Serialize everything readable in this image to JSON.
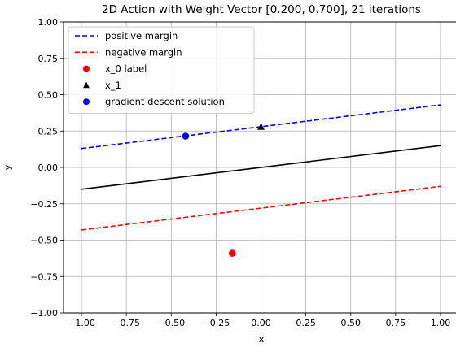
{
  "chart_data": {
    "type": "line",
    "title": "2D Action with Weight Vector [0.200, 0.700], 21 iterations",
    "xlabel": "x",
    "ylabel": "y",
    "xlim": [
      -1.1,
      1.1
    ],
    "ylim": [
      -1.0,
      1.0
    ],
    "grid": true,
    "legend_position": "top-left",
    "x_ticks": [
      -1.0,
      -0.75,
      -0.5,
      -0.25,
      0.0,
      0.25,
      0.5,
      0.75,
      1.0
    ],
    "x_tick_labels": [
      "−1.00",
      "−0.75",
      "−0.50",
      "−0.25",
      "0.00",
      "0.25",
      "0.50",
      "0.75",
      "1.00"
    ],
    "y_ticks": [
      -1.0,
      -0.75,
      -0.5,
      -0.25,
      0.0,
      0.25,
      0.5,
      0.75,
      1.0
    ],
    "y_tick_labels": [
      "−1.00",
      "−0.75",
      "−0.50",
      "−0.25",
      "0.00",
      "0.25",
      "0.50",
      "0.75",
      "1.00"
    ],
    "series": [
      {
        "name": "positive margin",
        "kind": "line",
        "style": "dashed",
        "color": "#0000ff",
        "x": [
          -1.0,
          1.0
        ],
        "y": [
          0.13,
          0.43
        ]
      },
      {
        "name": "negative margin",
        "kind": "line",
        "style": "dashed",
        "color": "#ff0000",
        "x": [
          -1.0,
          1.0
        ],
        "y": [
          -0.43,
          -0.13
        ]
      },
      {
        "name": "",
        "kind": "line",
        "style": "solid",
        "color": "#000000",
        "x": [
          -1.0,
          1.0
        ],
        "y": [
          -0.15,
          0.15
        ]
      },
      {
        "name": "x_0 label",
        "kind": "point",
        "marker": "circle",
        "color": "#ff0000",
        "x": [
          -0.16
        ],
        "y": [
          -0.59
        ]
      },
      {
        "name": "x_1",
        "kind": "point",
        "marker": "triangle",
        "color": "#000000",
        "x": [
          0.0
        ],
        "y": [
          0.28
        ]
      },
      {
        "name": "gradient descent solution",
        "kind": "point",
        "marker": "circle",
        "color": "#0000ff",
        "x": [
          -0.42
        ],
        "y": [
          0.215
        ]
      }
    ],
    "legend_entries": [
      "positive margin",
      "negative margin",
      "x_0 label",
      "x_1",
      "gradient descent solution"
    ]
  }
}
